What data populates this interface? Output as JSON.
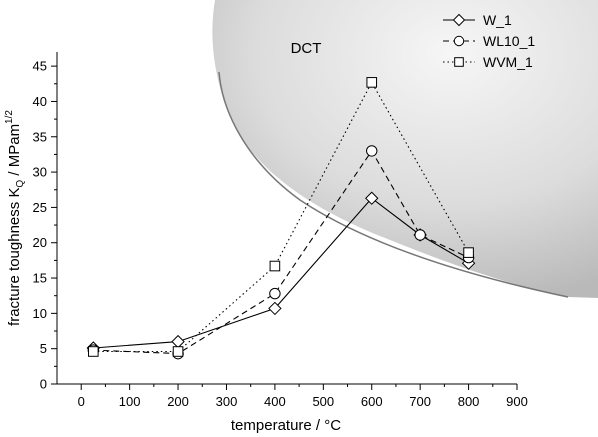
{
  "chart_data": {
    "type": "line",
    "xlabel": "temperature / °C",
    "ylabel": {
      "main": "fracture toughness K",
      "sub": "Q",
      "mid": " / MPam",
      "sup": "1/2"
    },
    "xlim": [
      -50,
      900
    ],
    "ylim": [
      0,
      47
    ],
    "xticks": [
      0,
      100,
      200,
      300,
      400,
      500,
      600,
      700,
      800,
      900
    ],
    "yticks": [
      0,
      5,
      10,
      15,
      20,
      25,
      30,
      35,
      40,
      45
    ],
    "grid": false,
    "legend": {
      "position": "top-right"
    },
    "annotation": {
      "text": "DCT"
    },
    "series": [
      {
        "name": "W_1",
        "marker": "diamond",
        "line": "solid",
        "points": [
          [
            25,
            5.1
          ],
          [
            200,
            6.0
          ],
          [
            400,
            10.7
          ],
          [
            600,
            26.3
          ],
          [
            700,
            21.1
          ],
          [
            800,
            17.1
          ]
        ]
      },
      {
        "name": "WL10_1",
        "marker": "circle",
        "line": "dashed",
        "points": [
          [
            25,
            4.8
          ],
          [
            200,
            4.3
          ],
          [
            400,
            12.8
          ],
          [
            600,
            33.0
          ],
          [
            700,
            21.1
          ],
          [
            800,
            17.9
          ]
        ]
      },
      {
        "name": "WVM_1",
        "marker": "square",
        "line": "dotted",
        "points": [
          [
            25,
            4.6
          ],
          [
            200,
            4.6
          ],
          [
            400,
            16.7
          ],
          [
            600,
            42.7
          ],
          [
            800,
            18.6
          ]
        ]
      }
    ]
  }
}
